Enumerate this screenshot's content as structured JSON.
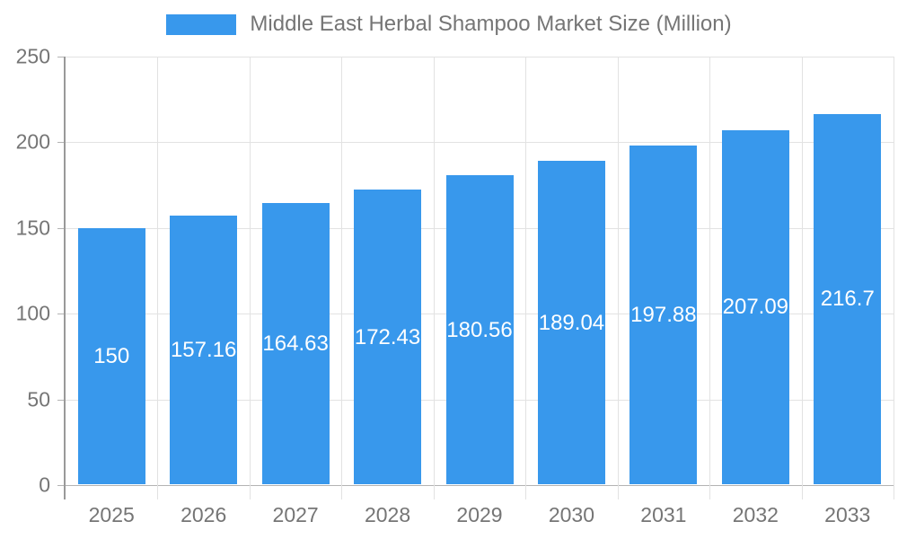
{
  "legend": {
    "label": "Middle East Herbal Shampoo Market Size (Million)"
  },
  "chart_data": {
    "type": "bar",
    "title": "Middle East Herbal Shampoo Market Size (Million)",
    "categories": [
      "2025",
      "2026",
      "2027",
      "2028",
      "2029",
      "2030",
      "2031",
      "2032",
      "2033"
    ],
    "values": [
      150,
      157.16,
      164.63,
      172.43,
      180.56,
      189.04,
      197.88,
      207.09,
      216.7
    ],
    "value_labels": [
      "150",
      "157.16",
      "164.63",
      "172.43",
      "180.56",
      "189.04",
      "197.88",
      "207.09",
      "216.7"
    ],
    "xlabel": "",
    "ylabel": "",
    "ylim": [
      0,
      250
    ],
    "yticks": [
      0,
      50,
      100,
      150,
      200,
      250
    ],
    "grid": true,
    "legend_position": "top",
    "colors": {
      "bar": "#3898ec",
      "bar_label": "#ffffff",
      "grid": "#e2e2e2",
      "baseline": "#b3b3b3",
      "axis": "#999999",
      "tick_text": "#757575",
      "title_text": "#757575"
    }
  }
}
